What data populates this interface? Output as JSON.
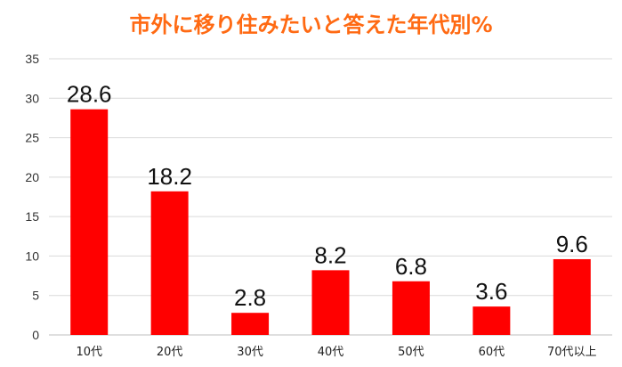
{
  "chart_data": {
    "type": "bar",
    "title": "市外に移り住みたいと答えた年代別%",
    "categories": [
      "10代",
      "20代",
      "30代",
      "40代",
      "50代",
      "60代",
      "70代以上"
    ],
    "values": [
      28.6,
      18.2,
      2.8,
      8.2,
      6.8,
      3.6,
      9.6
    ],
    "ylim": [
      0,
      35
    ],
    "yticks": [
      0,
      5,
      10,
      15,
      20,
      25,
      30,
      35
    ],
    "grid": true,
    "bar_color": "#ff0000",
    "title_color": "#ff6a13"
  }
}
